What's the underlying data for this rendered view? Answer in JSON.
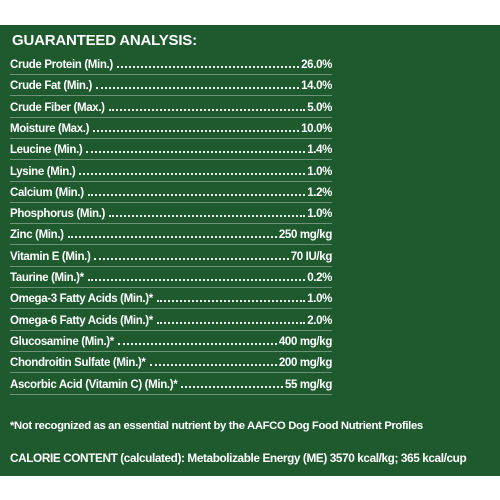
{
  "title": "GUARANTEED ANALYSIS:",
  "rows": [
    {
      "label": "Crude Protein (Min.)",
      "value": "26.0%"
    },
    {
      "label": "Crude Fat (Min.)",
      "value": "14.0%"
    },
    {
      "label": "Crude Fiber (Max.)",
      "value": "5.0%"
    },
    {
      "label": "Moisture (Max.)",
      "value": "10.0%"
    },
    {
      "label": "Leucine (Min.)",
      "value": "1.4%"
    },
    {
      "label": "Lysine (Min.)",
      "value": "1.0%"
    },
    {
      "label": "Calcium (Min.)",
      "value": "1.2%"
    },
    {
      "label": "Phosphorus (Min.)",
      "value": "1.0%"
    },
    {
      "label": "Zinc (Min.)",
      "value": "250 mg/kg"
    },
    {
      "label": "Vitamin E (Min.)",
      "value": "70 IU/kg"
    },
    {
      "label": "Taurine (Min.)*",
      "value": "0.2%"
    },
    {
      "label": "Omega-3 Fatty Acids (Min.)*",
      "value": "1.0%"
    },
    {
      "label": "Omega-6 Fatty Acids (Min.)*",
      "value": "2.0%"
    },
    {
      "label": "Glucosamine (Min.)*",
      "value": "400 mg/kg"
    },
    {
      "label": "Chondroitin Sulfate (Min.)*",
      "value": "200 mg/kg"
    },
    {
      "label": "Ascorbic Acid (Vitamin C) (Min.)*",
      "value": "55 mg/kg"
    }
  ],
  "footnote": "*Not recognized as an essential nutrient by the AAFCO Dog Food Nutrient Profiles",
  "calorie_content": "CALORIE CONTENT (calculated): Metabolizable Energy (ME) 3570 kcal/kg; 365 kcal/cup"
}
